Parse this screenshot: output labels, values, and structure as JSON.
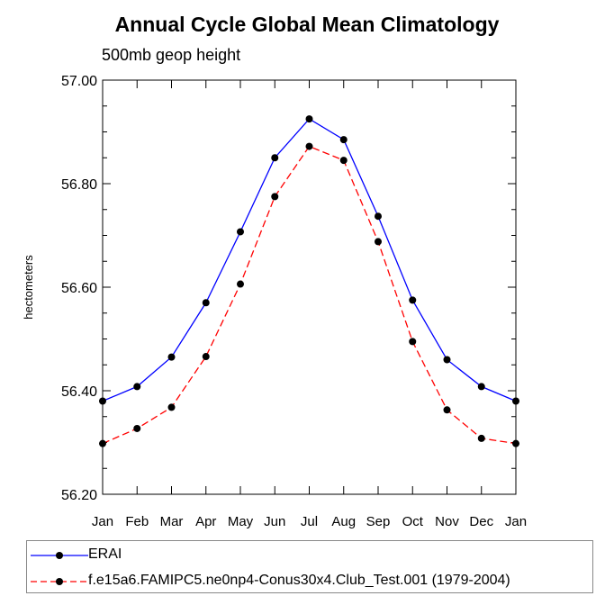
{
  "title": "Annual Cycle Global Mean Climatology",
  "subtitle": "500mb geop height",
  "chart_data": {
    "type": "line",
    "title": "Annual Cycle Global Mean Climatology",
    "subtitle": "500mb geop height",
    "xlabel": "",
    "ylabel": "hectometers",
    "categories": [
      "Jan",
      "Feb",
      "Mar",
      "Apr",
      "May",
      "Jun",
      "Jul",
      "Aug",
      "Sep",
      "Oct",
      "Nov",
      "Dec",
      "Jan"
    ],
    "ylim": [
      56.2,
      57.0
    ],
    "yticks": [
      "56.20",
      "56.40",
      "56.60",
      "56.80",
      "57.00"
    ],
    "grid": false,
    "legend_position": "bottom",
    "series": [
      {
        "name": "ERAI",
        "color": "#0000ff",
        "line_style": "solid",
        "values": [
          56.38,
          56.408,
          56.465,
          56.57,
          56.707,
          56.85,
          56.925,
          56.885,
          56.737,
          56.575,
          56.46,
          56.408,
          56.38
        ]
      },
      {
        "name": "f.e15a6.FAMIPC5.ne0np4-Conus30x4.Club_Test.001 (1979-2004)",
        "color": "#ff0000",
        "line_style": "dashed",
        "values": [
          56.298,
          56.327,
          56.368,
          56.466,
          56.606,
          56.775,
          56.872,
          56.845,
          56.688,
          56.495,
          56.363,
          56.308,
          56.298
        ]
      }
    ]
  }
}
